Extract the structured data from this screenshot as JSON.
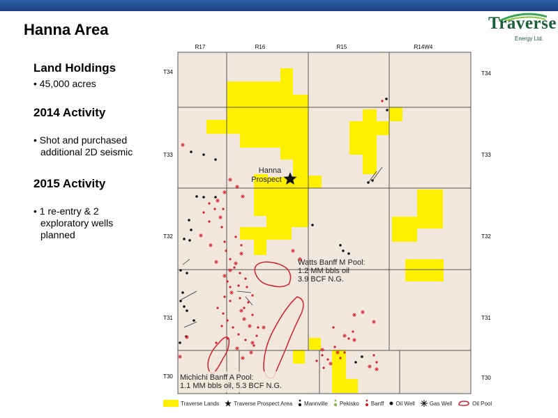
{
  "header": {
    "title": "Hanna Area"
  },
  "logo": {
    "name": "Traverse",
    "subtitle": "Energy Ltd."
  },
  "colors": {
    "land": "#ffef00",
    "map_bg": "#f2e7dc",
    "grid": "#555555",
    "well": "#d2202f",
    "oil_well": "#111111",
    "header_bar": "#1c3f7e"
  },
  "panel": {
    "sections": [
      {
        "heading": "Land Holdings",
        "bullets": [
          "45,000  acres"
        ]
      },
      {
        "heading": "2014 Activity",
        "bullets": [
          "Shot and purchased additional 2D seismic"
        ]
      },
      {
        "heading": "2015 Activity",
        "bullets": [
          "1 re-entry & 2 exploratory wells planned"
        ]
      }
    ]
  },
  "map": {
    "ranges": [
      "R17",
      "R16",
      "R15",
      "R14W4"
    ],
    "townships": [
      "T34",
      "T33",
      "T32",
      "T31",
      "T30"
    ],
    "prospect_label": [
      "Hanna",
      "Prospect"
    ],
    "annotations": {
      "watts": [
        "Watts Banff M Pool:",
        "1.2 MM bbls oil",
        "3.9 BCF N.G."
      ],
      "michichi": [
        "Michichi Banff A Pool:",
        "1.1 MM bbls oil, 5.3 BCF N.G."
      ]
    }
  },
  "legend": {
    "items": [
      {
        "label": "Traverse Lands",
        "icon": "yellow-square"
      },
      {
        "label": "Traverse Prospect Area",
        "icon": "star-icon"
      },
      {
        "label": "Mannville",
        "icon": "mannville-well-icon"
      },
      {
        "label": "Pekisko",
        "icon": "pekisko-well-icon"
      },
      {
        "label": "Banff",
        "icon": "banff-well-icon"
      },
      {
        "label": "Oil Well",
        "icon": "oil-well-icon"
      },
      {
        "label": "Gas Well",
        "icon": "gas-well-icon"
      },
      {
        "label": "Oil Pool",
        "icon": "oil-pool-icon"
      }
    ]
  }
}
